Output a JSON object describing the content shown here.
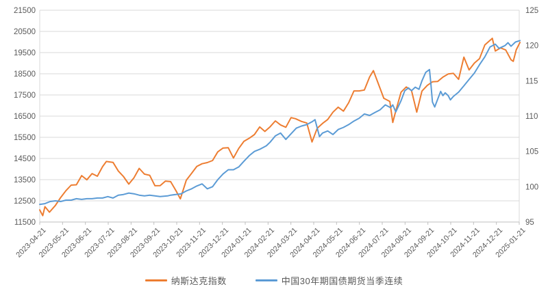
{
  "colors": {
    "background": "#ffffff",
    "gridline": "#d9d9d9",
    "plot_border": "#d9d9d9",
    "axis_line": "#bfbfbf",
    "axis_text": "#595959",
    "nasdaq_orange": "#ED7D31",
    "bond_blue": "#5B9BD5"
  },
  "chart_data": {
    "type": "line",
    "title": "",
    "grid": "horizontal",
    "legend_position": "bottom",
    "x_start_date": "2023-04-21",
    "x_end_date": "2025-01-21",
    "x_tick_labels": [
      "2023-04-21",
      "2023-05-21",
      "2023-06-21",
      "2023-07-21",
      "2023-08-21",
      "2023-09-21",
      "2023-10-21",
      "2023-11-21",
      "2023-12-21",
      "2024-01-21",
      "2024-02-21",
      "2024-03-21",
      "2024-04-21",
      "2024-05-21",
      "2024-06-21",
      "2024-07-21",
      "2024-08-21",
      "2024-09-21",
      "2024-10-21",
      "2024-11-21",
      "2024-12-21",
      "2025-01-21"
    ],
    "left_axis": {
      "min": 11500,
      "max": 21500,
      "step": 1000,
      "tick_labels": [
        "11500",
        "12500",
        "13500",
        "14500",
        "15500",
        "16500",
        "17500",
        "18500",
        "19500",
        "20500",
        "21500"
      ]
    },
    "right_axis": {
      "min": 95,
      "max": 125,
      "step": 5,
      "tick_labels": [
        "95",
        "100",
        "105",
        "110",
        "115",
        "120",
        "125"
      ]
    },
    "series": [
      {
        "name": "纳斯达克指数",
        "axis": "left",
        "color": "#ED7D31",
        "data": [
          [
            "2023-04-21",
            12072
          ],
          [
            "2023-04-25",
            11799
          ],
          [
            "2023-04-28",
            12227
          ],
          [
            "2023-05-04",
            11966
          ],
          [
            "2023-05-12",
            12285
          ],
          [
            "2023-05-19",
            12658
          ],
          [
            "2023-05-26",
            12976
          ],
          [
            "2023-06-02",
            13241
          ],
          [
            "2023-06-09",
            13259
          ],
          [
            "2023-06-16",
            13690
          ],
          [
            "2023-06-23",
            13493
          ],
          [
            "2023-06-30",
            13788
          ],
          [
            "2023-07-07",
            13661
          ],
          [
            "2023-07-14",
            14114
          ],
          [
            "2023-07-19",
            14358
          ],
          [
            "2023-07-28",
            14317
          ],
          [
            "2023-08-04",
            13909
          ],
          [
            "2023-08-11",
            13645
          ],
          [
            "2023-08-18",
            13291
          ],
          [
            "2023-08-25",
            13591
          ],
          [
            "2023-09-01",
            14032
          ],
          [
            "2023-09-08",
            13762
          ],
          [
            "2023-09-15",
            13708
          ],
          [
            "2023-09-22",
            13212
          ],
          [
            "2023-09-29",
            13219
          ],
          [
            "2023-10-06",
            13431
          ],
          [
            "2023-10-13",
            13407
          ],
          [
            "2023-10-20",
            12984
          ],
          [
            "2023-10-26",
            12595
          ],
          [
            "2023-11-03",
            13478
          ],
          [
            "2023-11-10",
            13798
          ],
          [
            "2023-11-17",
            14125
          ],
          [
            "2023-11-24",
            14251
          ],
          [
            "2023-12-01",
            14305
          ],
          [
            "2023-12-08",
            14404
          ],
          [
            "2023-12-15",
            14814
          ],
          [
            "2023-12-22",
            14993
          ],
          [
            "2023-12-29",
            15011
          ],
          [
            "2024-01-05",
            14524
          ],
          [
            "2024-01-12",
            14973
          ],
          [
            "2024-01-19",
            15311
          ],
          [
            "2024-01-26",
            15455
          ],
          [
            "2024-02-02",
            15629
          ],
          [
            "2024-02-09",
            15991
          ],
          [
            "2024-02-16",
            15776
          ],
          [
            "2024-02-23",
            15997
          ],
          [
            "2024-03-01",
            16275
          ],
          [
            "2024-03-08",
            16085
          ],
          [
            "2024-03-15",
            15973
          ],
          [
            "2024-03-22",
            16428
          ],
          [
            "2024-03-28",
            16379
          ],
          [
            "2024-04-05",
            16248
          ],
          [
            "2024-04-12",
            16175
          ],
          [
            "2024-04-19",
            15282
          ],
          [
            "2024-04-26",
            15928
          ],
          [
            "2024-05-03",
            16156
          ],
          [
            "2024-05-10",
            16341
          ],
          [
            "2024-05-17",
            16686
          ],
          [
            "2024-05-24",
            16921
          ],
          [
            "2024-05-31",
            16735
          ],
          [
            "2024-06-07",
            17133
          ],
          [
            "2024-06-14",
            17689
          ],
          [
            "2024-06-21",
            17689
          ],
          [
            "2024-06-28",
            17733
          ],
          [
            "2024-07-05",
            18353
          ],
          [
            "2024-07-10",
            18647
          ],
          [
            "2024-07-17",
            17997
          ],
          [
            "2024-07-24",
            17342
          ],
          [
            "2024-08-01",
            17194
          ],
          [
            "2024-08-05",
            16200
          ],
          [
            "2024-08-09",
            16745
          ],
          [
            "2024-08-16",
            17632
          ],
          [
            "2024-08-23",
            17878
          ],
          [
            "2024-08-30",
            17714
          ],
          [
            "2024-09-06",
            16691
          ],
          [
            "2024-09-13",
            17684
          ],
          [
            "2024-09-20",
            17948
          ],
          [
            "2024-09-27",
            18120
          ],
          [
            "2024-10-04",
            18138
          ],
          [
            "2024-10-11",
            18343
          ],
          [
            "2024-10-18",
            18490
          ],
          [
            "2024-10-25",
            18519
          ],
          [
            "2024-11-01",
            18240
          ],
          [
            "2024-11-08",
            19287
          ],
          [
            "2024-11-15",
            18680
          ],
          [
            "2024-11-22",
            19004
          ],
          [
            "2024-11-29",
            19218
          ],
          [
            "2024-12-06",
            19860
          ],
          [
            "2024-12-16",
            20174
          ],
          [
            "2024-12-20",
            19573
          ],
          [
            "2024-12-27",
            19722
          ],
          [
            "2025-01-03",
            19622
          ],
          [
            "2025-01-10",
            19162
          ],
          [
            "2025-01-13",
            19088
          ],
          [
            "2025-01-17",
            19630
          ],
          [
            "2025-01-22",
            19980
          ]
        ]
      },
      {
        "name": "中国30年期国债期货当季连续",
        "axis": "right",
        "color": "#5B9BD5",
        "data": [
          [
            "2023-04-21",
            97.5
          ],
          [
            "2023-04-28",
            97.6
          ],
          [
            "2023-05-05",
            97.9
          ],
          [
            "2023-05-12",
            98.0
          ],
          [
            "2023-05-19",
            97.9
          ],
          [
            "2023-05-26",
            98.1
          ],
          [
            "2023-06-02",
            98.1
          ],
          [
            "2023-06-09",
            98.3
          ],
          [
            "2023-06-16",
            98.2
          ],
          [
            "2023-06-23",
            98.3
          ],
          [
            "2023-06-30",
            98.3
          ],
          [
            "2023-07-07",
            98.4
          ],
          [
            "2023-07-14",
            98.4
          ],
          [
            "2023-07-21",
            98.6
          ],
          [
            "2023-07-28",
            98.4
          ],
          [
            "2023-08-04",
            98.8
          ],
          [
            "2023-08-11",
            98.9
          ],
          [
            "2023-08-18",
            99.1
          ],
          [
            "2023-08-25",
            99.0
          ],
          [
            "2023-09-01",
            98.8
          ],
          [
            "2023-09-08",
            98.7
          ],
          [
            "2023-09-15",
            98.8
          ],
          [
            "2023-09-22",
            98.7
          ],
          [
            "2023-09-29",
            98.6
          ],
          [
            "2023-10-09",
            98.7
          ],
          [
            "2023-10-13",
            98.8
          ],
          [
            "2023-10-20",
            98.9
          ],
          [
            "2023-10-27",
            99.0
          ],
          [
            "2023-11-03",
            99.4
          ],
          [
            "2023-11-10",
            99.7
          ],
          [
            "2023-11-17",
            100.1
          ],
          [
            "2023-11-24",
            100.4
          ],
          [
            "2023-12-01",
            99.7
          ],
          [
            "2023-12-08",
            100.0
          ],
          [
            "2023-12-15",
            101.0
          ],
          [
            "2023-12-22",
            101.8
          ],
          [
            "2023-12-29",
            102.4
          ],
          [
            "2024-01-05",
            102.4
          ],
          [
            "2024-01-12",
            102.8
          ],
          [
            "2024-01-19",
            103.6
          ],
          [
            "2024-01-26",
            104.4
          ],
          [
            "2024-02-02",
            105.0
          ],
          [
            "2024-02-09",
            105.3
          ],
          [
            "2024-02-18",
            105.8
          ],
          [
            "2024-02-23",
            106.3
          ],
          [
            "2024-03-01",
            107.2
          ],
          [
            "2024-03-08",
            107.6
          ],
          [
            "2024-03-15",
            106.7
          ],
          [
            "2024-03-22",
            107.5
          ],
          [
            "2024-03-29",
            108.3
          ],
          [
            "2024-04-05",
            108.6
          ],
          [
            "2024-04-12",
            108.8
          ],
          [
            "2024-04-19",
            109.2
          ],
          [
            "2024-04-23",
            109.5
          ],
          [
            "2024-04-29",
            107.1
          ],
          [
            "2024-05-03",
            107.6
          ],
          [
            "2024-05-10",
            107.9
          ],
          [
            "2024-05-17",
            107.4
          ],
          [
            "2024-05-24",
            108.1
          ],
          [
            "2024-05-31",
            108.4
          ],
          [
            "2024-06-07",
            108.8
          ],
          [
            "2024-06-14",
            109.3
          ],
          [
            "2024-06-21",
            109.7
          ],
          [
            "2024-06-28",
            110.3
          ],
          [
            "2024-07-05",
            110.1
          ],
          [
            "2024-07-12",
            110.5
          ],
          [
            "2024-07-19",
            110.9
          ],
          [
            "2024-07-26",
            111.6
          ],
          [
            "2024-08-02",
            111.2
          ],
          [
            "2024-08-05",
            111.6
          ],
          [
            "2024-08-09",
            110.6
          ],
          [
            "2024-08-16",
            112.2
          ],
          [
            "2024-08-21",
            113.6
          ],
          [
            "2024-08-26",
            114.0
          ],
          [
            "2024-08-30",
            113.6
          ],
          [
            "2024-09-04",
            114.1
          ],
          [
            "2024-09-09",
            113.8
          ],
          [
            "2024-09-13",
            115.0
          ],
          [
            "2024-09-18",
            116.2
          ],
          [
            "2024-09-23",
            116.6
          ],
          [
            "2024-09-25",
            114.5
          ],
          [
            "2024-09-27",
            112.0
          ],
          [
            "2024-09-30",
            111.3
          ],
          [
            "2024-10-08",
            113.5
          ],
          [
            "2024-10-11",
            112.9
          ],
          [
            "2024-10-14",
            113.3
          ],
          [
            "2024-10-18",
            112.9
          ],
          [
            "2024-10-21",
            112.3
          ],
          [
            "2024-10-25",
            112.8
          ],
          [
            "2024-11-01",
            113.4
          ],
          [
            "2024-11-08",
            114.3
          ],
          [
            "2024-11-15",
            115.2
          ],
          [
            "2024-11-22",
            116.1
          ],
          [
            "2024-11-29",
            117.3
          ],
          [
            "2024-12-06",
            118.4
          ],
          [
            "2024-12-13",
            119.8
          ],
          [
            "2024-12-20",
            120.2
          ],
          [
            "2024-12-25",
            119.6
          ],
          [
            "2025-01-02",
            120.0
          ],
          [
            "2025-01-06",
            120.4
          ],
          [
            "2025-01-10",
            119.9
          ],
          [
            "2025-01-16",
            120.5
          ],
          [
            "2025-01-22",
            120.7
          ]
        ]
      }
    ]
  }
}
